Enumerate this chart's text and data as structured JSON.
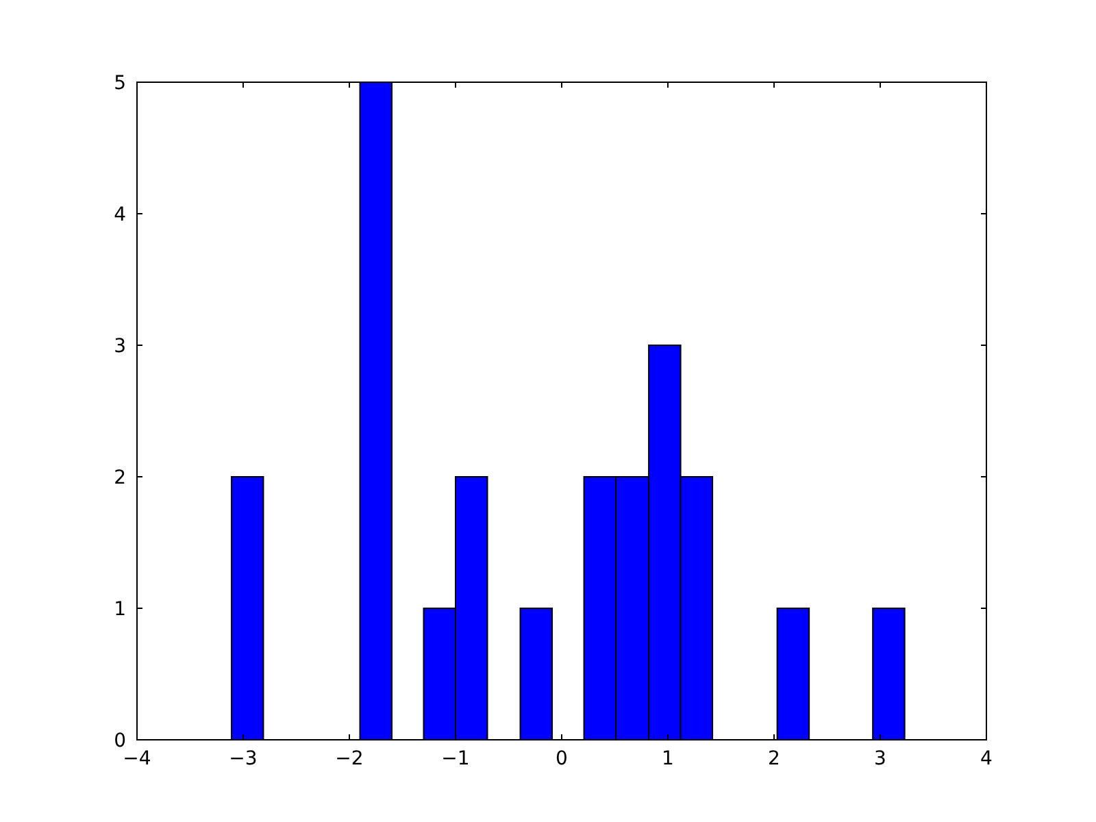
{
  "chart_data": {
    "type": "histogram",
    "bins": [
      -3.11,
      -2.81,
      -1.9,
      -1.6,
      -1.3,
      -1.0,
      -0.7,
      -0.39,
      -0.09,
      0.21,
      0.51,
      0.82,
      1.12,
      1.42,
      2.03,
      2.33,
      2.93,
      3.23
    ],
    "values": [
      2,
      0,
      5,
      0,
      1,
      2,
      0,
      1,
      0,
      2,
      2,
      3,
      2,
      0,
      1,
      0,
      1
    ],
    "color": "#0000ff",
    "xlim": [
      -4,
      4
    ],
    "xticks": [
      -4,
      -3,
      -2,
      -1,
      0,
      1,
      2,
      3,
      4
    ],
    "ylim": [
      0,
      5
    ],
    "yticks": [
      0,
      1,
      2,
      3,
      4,
      5
    ],
    "grid": false
  }
}
